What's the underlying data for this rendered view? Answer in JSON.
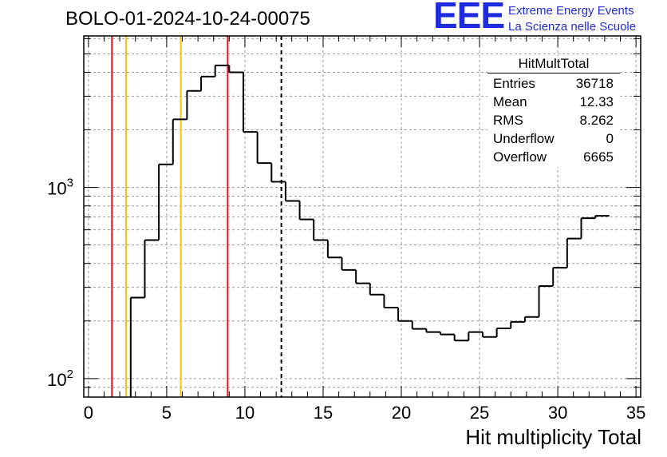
{
  "page": {
    "title": "BOLO-01-2024-10-24-00075"
  },
  "logo": {
    "mark": "EEE",
    "line1": "Extreme Energy Events",
    "line2": "La Scienza nelle Scuole",
    "color": "#1f2bdf"
  },
  "stats_box": {
    "title": "HitMultTotal",
    "rows": [
      {
        "label": "Entries",
        "value": "36718"
      },
      {
        "label": "Mean",
        "value": "12.33"
      },
      {
        "label": "RMS",
        "value": "8.262"
      },
      {
        "label": "Underflow",
        "value": "0"
      },
      {
        "label": "Overflow",
        "value": "6665"
      }
    ]
  },
  "chart_data": {
    "type": "histogram",
    "title": "BOLO-01-2024-10-24-00075",
    "xlabel": "Hit multiplicity Total",
    "ylabel": "",
    "xlim": [
      -0.3,
      35.3
    ],
    "ylim": [
      80,
      6200
    ],
    "yscale": "log",
    "grid": true,
    "x_ticks": [
      0,
      5,
      10,
      15,
      20,
      25,
      30,
      35
    ],
    "y_ticks": [
      {
        "value": 100,
        "label_base": "10",
        "label_exp": "2"
      },
      {
        "value": 1000,
        "label_base": "10",
        "label_exp": "3"
      }
    ],
    "bin_width": 0.9,
    "bin_start": 0,
    "values": [
      0,
      0,
      0,
      265,
      530,
      1320,
      2270,
      3200,
      3800,
      4350,
      4000,
      1950,
      1340,
      1070,
      850,
      680,
      530,
      430,
      370,
      315,
      275,
      235,
      200,
      182,
      175,
      170,
      158,
      175,
      165,
      183,
      198,
      210,
      305,
      380,
      540,
      690,
      710
    ],
    "vertical_lines": [
      {
        "x": 1.5,
        "color": "#e8101a",
        "style": "solid"
      },
      {
        "x": 2.4,
        "color": "#f5c40b",
        "style": "solid"
      },
      {
        "x": 5.9,
        "color": "#f5c40b",
        "style": "solid"
      },
      {
        "x": 8.9,
        "color": "#e8101a",
        "style": "solid"
      },
      {
        "x": 12.33,
        "color": "#000000",
        "style": "dashed"
      }
    ]
  }
}
